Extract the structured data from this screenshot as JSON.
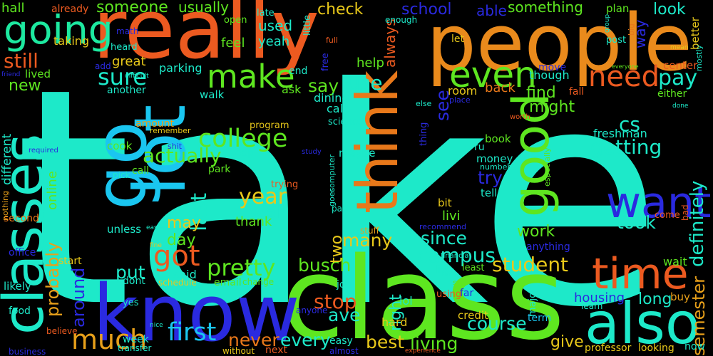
{
  "words": [
    {
      "text": "take",
      "color": "#1de9c9"
    },
    {
      "text": "class",
      "color": "#5ee620"
    },
    {
      "text": "people",
      "color": "#e98a1c"
    },
    {
      "text": "really",
      "color": "#ec5a20"
    },
    {
      "text": "know",
      "color": "#2a2ae0"
    },
    {
      "text": "also",
      "color": "#1de9c9"
    },
    {
      "text": "classes",
      "color": "#1de9c9"
    },
    {
      "text": "go",
      "color": "#1ac6f0"
    },
    {
      "text": "lot",
      "color": "#1ac6f0"
    },
    {
      "text": "think",
      "color": "#e8781a"
    },
    {
      "text": "want",
      "color": "#2a2ae0"
    },
    {
      "text": "good",
      "color": "#5ee620"
    },
    {
      "text": "time",
      "color": "#ec5a20"
    },
    {
      "text": "going",
      "color": "#1de9a0"
    },
    {
      "text": "make",
      "color": "#5ee620"
    },
    {
      "text": "even",
      "color": "#5ee620"
    },
    {
      "text": "need",
      "color": "#ec5a20"
    },
    {
      "text": "much",
      "color": "#e8a01a"
    },
    {
      "text": "first",
      "color": "#1ac6f0"
    },
    {
      "text": "got",
      "color": "#ec5a20"
    },
    {
      "text": "college",
      "color": "#5ee620"
    },
    {
      "text": "sure",
      "color": "#1de9c9"
    },
    {
      "text": "pretty",
      "color": "#5ee620"
    },
    {
      "text": "year",
      "color": "#e8c81a"
    },
    {
      "text": "last",
      "color": "#1de9c9"
    },
    {
      "text": "actually",
      "color": "#5ee620"
    },
    {
      "text": "getting",
      "color": "#1de9c9"
    },
    {
      "text": "definitely",
      "color": "#1de9c9"
    },
    {
      "text": "semester",
      "color": "#e8a01a"
    },
    {
      "text": "probably",
      "color": "#e8a01a"
    },
    {
      "text": "around",
      "color": "#2a2ae0"
    },
    {
      "text": "campus",
      "color": "#1de9c9"
    },
    {
      "text": "student",
      "color": "#e8c81a"
    },
    {
      "text": "course",
      "color": "#1de9c9"
    },
    {
      "text": "stop",
      "color": "#ec5a20"
    },
    {
      "text": "busch",
      "color": "#5ee620"
    },
    {
      "text": "every",
      "color": "#1de9c9"
    },
    {
      "text": "never",
      "color": "#e8781a"
    },
    {
      "text": "best",
      "color": "#e8c81a"
    },
    {
      "text": "living",
      "color": "#5ee620"
    },
    {
      "text": "give",
      "color": "#e8c81a"
    },
    {
      "text": "long",
      "color": "#1de9c9"
    },
    {
      "text": "took",
      "color": "#1de9c9"
    },
    {
      "text": "work",
      "color": "#5ee620"
    },
    {
      "text": "since",
      "color": "#1de9c9"
    },
    {
      "text": "many",
      "color": "#e8c81a"
    },
    {
      "text": "two",
      "color": "#e8c81a"
    },
    {
      "text": "put",
      "color": "#1de9c9"
    },
    {
      "text": "may",
      "color": "#e8c81a"
    },
    {
      "text": "well",
      "color": "#1de9c9"
    },
    {
      "text": "thank",
      "color": "#5ee620"
    },
    {
      "text": "day",
      "color": "#5ee620"
    },
    {
      "text": "said",
      "color": "#1de9c9"
    },
    {
      "text": "ave",
      "color": "#1de9c9"
    },
    {
      "text": "right",
      "color": "#1de9c9"
    },
    {
      "text": "cs",
      "color": "#1de9c9"
    },
    {
      "text": "try",
      "color": "#2a2ae0"
    },
    {
      "text": "might",
      "color": "#5ee620"
    },
    {
      "text": "find",
      "color": "#5ee620"
    },
    {
      "text": "see",
      "color": "#2a2ae0"
    },
    {
      "text": "pay",
      "color": "#1de9c9"
    },
    {
      "text": "say",
      "color": "#5ee620"
    },
    {
      "text": "use",
      "color": "#1de9c9"
    },
    {
      "text": "still",
      "color": "#ec5a20"
    },
    {
      "text": "new",
      "color": "#5ee620"
    },
    {
      "text": "different",
      "color": "#1de9c9"
    },
    {
      "text": "online",
      "color": "#5ee620"
    },
    {
      "text": "someone",
      "color": "#5ee620"
    },
    {
      "text": "usually",
      "color": "#5ee620"
    },
    {
      "text": "check",
      "color": "#e8c81a"
    },
    {
      "text": "school",
      "color": "#2a2ae0"
    },
    {
      "text": "able",
      "color": "#2a2ae0"
    },
    {
      "text": "something",
      "color": "#5ee620"
    },
    {
      "text": "look",
      "color": "#1de9c9"
    },
    {
      "text": "way",
      "color": "#2a2ae0"
    },
    {
      "text": "better",
      "color": "#e8c81a"
    },
    {
      "text": "used",
      "color": "#1de9c9"
    },
    {
      "text": "yeah",
      "color": "#1de9c9"
    },
    {
      "text": "feel",
      "color": "#5ee620"
    },
    {
      "text": "always",
      "color": "#ec5a20"
    },
    {
      "text": "help",
      "color": "#5ee620"
    },
    {
      "text": "hall",
      "color": "#5ee620"
    },
    {
      "text": "already",
      "color": "#ec5a20"
    },
    {
      "text": "taking",
      "color": "#e8c81a"
    },
    {
      "text": "great",
      "color": "#e8c81a"
    },
    {
      "text": "parking",
      "color": "#1de9c9"
    },
    {
      "text": "lived",
      "color": "#5ee620"
    },
    {
      "text": "another",
      "color": "#1de9c9"
    },
    {
      "text": "walk",
      "color": "#1de9c9"
    },
    {
      "text": "ask",
      "color": "#5ee620"
    },
    {
      "text": "dining",
      "color": "#1de9c9"
    },
    {
      "text": "calc",
      "color": "#1de9c9"
    },
    {
      "text": "science",
      "color": "#1de9c9"
    },
    {
      "text": "room",
      "color": "#e8c81a"
    },
    {
      "text": "back",
      "color": "#e8781a"
    },
    {
      "text": "fall",
      "color": "#ec5a20"
    },
    {
      "text": "though",
      "color": "#1de9c9"
    },
    {
      "text": "move",
      "color": "#2a2ae0"
    },
    {
      "text": "center",
      "color": "#ec5a20"
    },
    {
      "text": "either",
      "color": "#5ee620"
    },
    {
      "text": "freshman",
      "color": "#1de9c9"
    },
    {
      "text": "book",
      "color": "#5ee620"
    },
    {
      "text": "money",
      "color": "#1de9c9"
    },
    {
      "text": "program",
      "color": "#e8c81a"
    },
    {
      "text": "amount",
      "color": "#e8a01a"
    },
    {
      "text": "cook",
      "color": "#5ee620"
    },
    {
      "text": "keep",
      "color": "#1de9c9"
    },
    {
      "text": "park",
      "color": "#5ee620"
    },
    {
      "text": "call",
      "color": "#5ee620"
    },
    {
      "text": "maybe",
      "color": "#1de9c9"
    },
    {
      "text": "livi",
      "color": "#5ee620"
    },
    {
      "text": "bit",
      "color": "#e8c81a"
    },
    {
      "text": "tell",
      "color": "#1de9c9"
    },
    {
      "text": "unless",
      "color": "#1de9c9"
    },
    {
      "text": "job",
      "color": "#1de9c9"
    },
    {
      "text": "lol",
      "color": "#1de9c9"
    },
    {
      "text": "hard",
      "color": "#e8c81a"
    },
    {
      "text": "credit",
      "color": "#e8c81a"
    },
    {
      "text": "wait",
      "color": "#5ee620"
    },
    {
      "text": "buy",
      "color": "#e8a01a"
    },
    {
      "text": "now",
      "color": "#1de9c9"
    },
    {
      "text": "housing",
      "color": "#2a2ae0"
    },
    {
      "text": "learn",
      "color": "#1de9c9"
    },
    {
      "text": "term",
      "color": "#1ac6f0"
    },
    {
      "text": "professor",
      "color": "#e8c81a"
    },
    {
      "text": "looking",
      "color": "#e8c81a"
    },
    {
      "text": "major",
      "color": "#1de9c9"
    },
    {
      "text": "live",
      "color": "#1de9c9"
    },
    {
      "text": "least",
      "color": "#5ee620"
    },
    {
      "text": "anything",
      "color": "#2a2ae0"
    },
    {
      "text": "dont",
      "color": "#1de9c9"
    },
    {
      "text": "email",
      "color": "#5ee620"
    },
    {
      "text": "change",
      "color": "#5ee620"
    },
    {
      "text": "schedule",
      "color": "#e8c81a"
    },
    {
      "text": "start",
      "color": "#e8c81a"
    },
    {
      "text": "likely",
      "color": "#1de9c9"
    },
    {
      "text": "office",
      "color": "#2a2ae0"
    },
    {
      "text": "food",
      "color": "#1de9c9"
    },
    {
      "text": "second",
      "color": "#e8781a"
    },
    {
      "text": "believe",
      "color": "#ec5a20"
    },
    {
      "text": "week",
      "color": "#1de9c9"
    },
    {
      "text": "yes",
      "color": "#1de9c9"
    },
    {
      "text": "transfer",
      "color": "#1de9c9"
    },
    {
      "text": "without",
      "color": "#e8c81a"
    },
    {
      "text": "next",
      "color": "#ec5a20"
    },
    {
      "text": "easy",
      "color": "#1de9c9"
    },
    {
      "text": "almost",
      "color": "#2a2ae0"
    },
    {
      "text": "business",
      "color": "#2a2ae0"
    },
    {
      "text": "experience",
      "color": "#ec5a20"
    },
    {
      "text": "anyone",
      "color": "#2a2ae0"
    },
    {
      "text": "using",
      "color": "#ec5a20"
    },
    {
      "text": "far",
      "color": "#2a2ae0"
    },
    {
      "text": "set",
      "color": "#5ee620"
    },
    {
      "text": "dorm",
      "color": "#1de9c9"
    },
    {
      "text": "financial",
      "color": "#1de9c9"
    },
    {
      "text": "recommend",
      "color": "#2a2ae0"
    },
    {
      "text": "stuff",
      "color": "#e8a01a"
    },
    {
      "text": "part",
      "color": "#1de9c9"
    },
    {
      "text": "goes",
      "color": "#1de9c9"
    },
    {
      "text": "computer",
      "color": "#1de9c9"
    },
    {
      "text": "trying",
      "color": "#ec5a20"
    },
    {
      "text": "pick",
      "color": "#1de9c9"
    },
    {
      "text": "nothing",
      "color": "#e8a01a"
    },
    {
      "text": "required",
      "color": "#2a2ae0"
    },
    {
      "text": "easier",
      "color": "#1de9c9"
    },
    {
      "text": "fine",
      "color": "#e8c81a"
    },
    {
      "text": "nice",
      "color": "#1de9c9"
    },
    {
      "text": "remember",
      "color": "#e8c81a"
    },
    {
      "text": "shit",
      "color": "#2a2ae0"
    },
    {
      "text": "study",
      "color": "#2a2ae0"
    },
    {
      "text": "ru",
      "color": "#1de9c9"
    },
    {
      "text": "number",
      "color": "#1de9c9"
    },
    {
      "text": "especially",
      "color": "#5ee620"
    },
    {
      "text": "come",
      "color": "#ec5a20"
    },
    {
      "text": "bad",
      "color": "#ec5a20"
    },
    {
      "text": "worth",
      "color": "#ec5a20"
    },
    {
      "text": "done",
      "color": "#1de9c9"
    },
    {
      "text": "place",
      "color": "#2a2ae0"
    },
    {
      "text": "else",
      "color": "#1de9c9"
    },
    {
      "text": "thing",
      "color": "#2a2ae0"
    },
    {
      "text": "let",
      "color": "#e8c81a"
    },
    {
      "text": "post",
      "color": "#1de9c9"
    },
    {
      "text": "mean",
      "color": "#e8c81a"
    },
    {
      "text": "mostly",
      "color": "#1de9c9"
    },
    {
      "text": "everyone",
      "color": "#5ee620"
    },
    {
      "text": "big",
      "color": "#e8781a"
    },
    {
      "text": "group",
      "color": "#1de9c9"
    },
    {
      "text": "plan",
      "color": "#5ee620"
    },
    {
      "text": "enough",
      "color": "#1de9c9"
    },
    {
      "text": "late",
      "color": "#1de9c9"
    },
    {
      "text": "little",
      "color": "#1de9c9"
    },
    {
      "text": "full",
      "color": "#ec5a20"
    },
    {
      "text": "free",
      "color": "#2a2ae0"
    },
    {
      "text": "end",
      "color": "#1de9c9"
    },
    {
      "text": "open",
      "color": "#5ee620"
    },
    {
      "text": "math",
      "color": "#2a2ae0"
    },
    {
      "text": "heard",
      "color": "#1de9c9"
    },
    {
      "text": "add",
      "color": "#2a2ae0"
    },
    {
      "text": "difficult",
      "color": "#1de9c9"
    },
    {
      "text": "friend",
      "color": "#2a2ae0"
    }
  ]
}
